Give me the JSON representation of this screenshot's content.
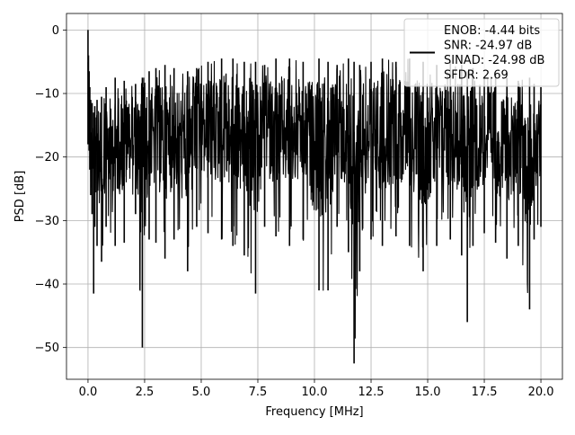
{
  "chart_data": {
    "type": "line",
    "xlabel": "Frequency [MHz]",
    "ylabel": "PSD [dB]",
    "xlim": [
      -0.95,
      20.95
    ],
    "ylim": [
      -55,
      2.6
    ],
    "xticks": [
      0.0,
      2.5,
      5.0,
      7.5,
      10.0,
      12.5,
      15.0,
      17.5,
      20.0
    ],
    "xtick_labels": [
      "0.0",
      "2.5",
      "5.0",
      "7.5",
      "10.0",
      "12.5",
      "15.0",
      "17.5",
      "20.0"
    ],
    "yticks": [
      0,
      -10,
      -20,
      -30,
      -40,
      -50
    ],
    "ytick_labels": [
      "0",
      "−10",
      "−20",
      "−30",
      "−40",
      "−50"
    ],
    "grid": true,
    "legend_placement": "upper-right",
    "legend_entries": [
      "ENOB: -4.44 bits",
      "SNR: -24.97 dB",
      "SINAD: -24.98 dB",
      "SFDR: 2.69"
    ],
    "series_color": "#000000",
    "series": [
      {
        "x": [
          0.0,
          0.02,
          0.05,
          0.08,
          0.12,
          0.18,
          0.25,
          0.3,
          0.4,
          0.6,
          0.8,
          1.2,
          1.6,
          2.1,
          2.4,
          2.7,
          3.0,
          3.4,
          3.8,
          4.4,
          4.8,
          5.3,
          5.9,
          6.4,
          6.9,
          7.4,
          7.8,
          8.3,
          8.9,
          9.5,
          10.2,
          10.6,
          11.0,
          11.5,
          11.75,
          12.0,
          12.5,
          13.0,
          13.6,
          14.2,
          14.8,
          15.4,
          16.0,
          16.5,
          16.75,
          17.0,
          17.5,
          18.0,
          18.5,
          19.0,
          19.5,
          19.7,
          20.0
        ],
        "upper": [
          0.0,
          -4.0,
          -6.5,
          -9.0,
          -11.0,
          -11.5,
          -13.0,
          -12.0,
          -11.0,
          -10.5,
          -9.0,
          -7.5,
          -8.0,
          -8.5,
          -7.5,
          -6.5,
          -6.0,
          -5.5,
          -6.0,
          -6.5,
          -6.0,
          -5.0,
          -4.5,
          -4.5,
          -5.0,
          -5.0,
          -5.5,
          -4.5,
          -4.5,
          -5.0,
          -4.5,
          -5.0,
          -5.5,
          -4.5,
          -5.0,
          -5.5,
          -5.0,
          -4.5,
          -5.0,
          -4.5,
          -5.0,
          -5.5,
          -5.0,
          -5.5,
          -6.5,
          -6.0,
          -7.5,
          -7.0,
          -7.5,
          -8.0,
          -7.5,
          -8.5,
          -9.0
        ],
        "lower": [
          -18.0,
          -16.0,
          -19.0,
          -22.0,
          -26.0,
          -29.0,
          -41.5,
          -31.0,
          -34.0,
          -36.5,
          -31.0,
          -34.0,
          -33.5,
          -29.0,
          -50.0,
          -33.0,
          -33.5,
          -36.0,
          -33.0,
          -38.0,
          -31.0,
          -32.0,
          -33.0,
          -34.0,
          -35.5,
          -41.5,
          -31.0,
          -32.5,
          -34.0,
          -33.0,
          -41.0,
          -41.0,
          -31.0,
          -35.0,
          -52.5,
          -38.0,
          -33.0,
          -34.0,
          -32.5,
          -34.0,
          -38.0,
          -34.0,
          -33.0,
          -35.5,
          -46.0,
          -34.0,
          -32.0,
          -33.5,
          -36.0,
          -34.0,
          -44.0,
          -33.0,
          -31.0
        ]
      }
    ]
  }
}
